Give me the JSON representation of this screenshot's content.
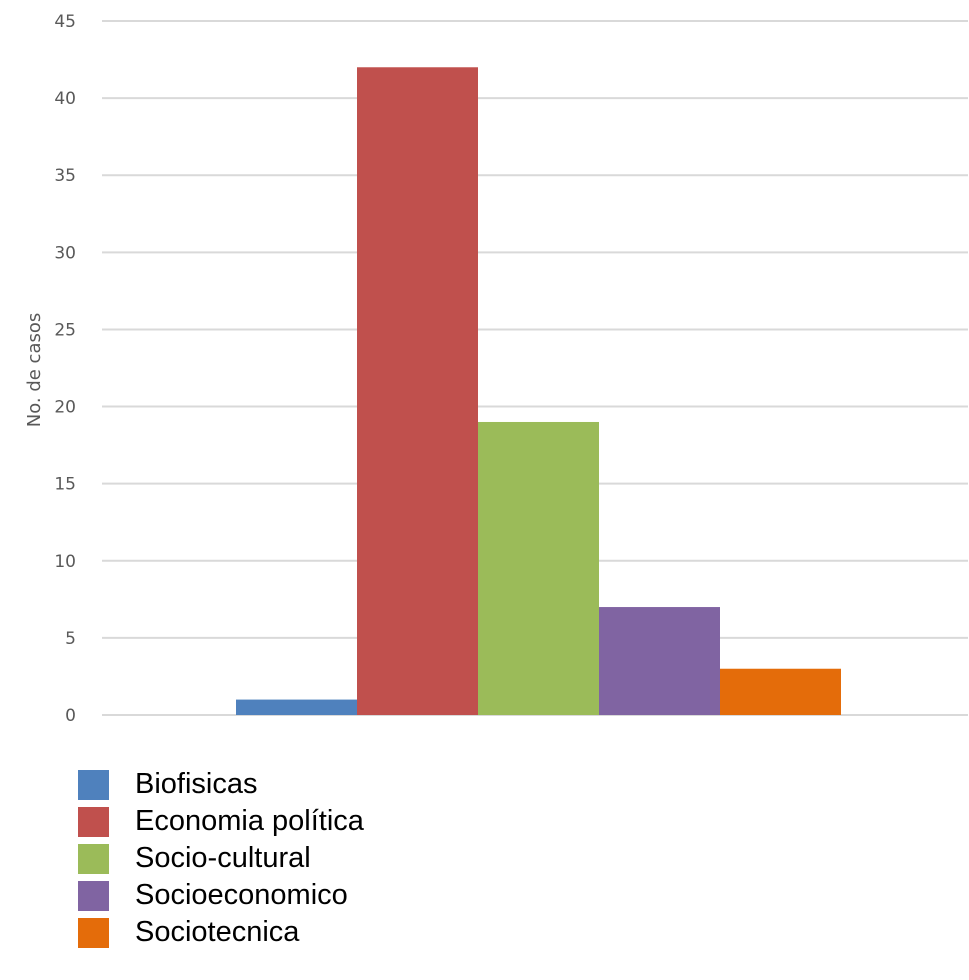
{
  "chart_data": {
    "type": "bar",
    "title": "",
    "xlabel": "",
    "ylabel": "No. de casos",
    "ylim": [
      0,
      45
    ],
    "yticks": [
      0,
      5,
      10,
      15,
      20,
      25,
      30,
      35,
      40,
      45
    ],
    "grid": true,
    "legend_position": "bottom-left",
    "categories": [
      ""
    ],
    "series": [
      {
        "name": "Biofisicas",
        "values": [
          1
        ],
        "color": "#4F81BD"
      },
      {
        "name": "Economia política",
        "values": [
          42
        ],
        "color": "#C0504D"
      },
      {
        "name": "Socio-cultural",
        "values": [
          19
        ],
        "color": "#9BBB59"
      },
      {
        "name": "Socioeconomico",
        "values": [
          7
        ],
        "color": "#8064A2"
      },
      {
        "name": "Sociotecnica",
        "values": [
          3
        ],
        "color": "#E46C0A"
      }
    ]
  }
}
